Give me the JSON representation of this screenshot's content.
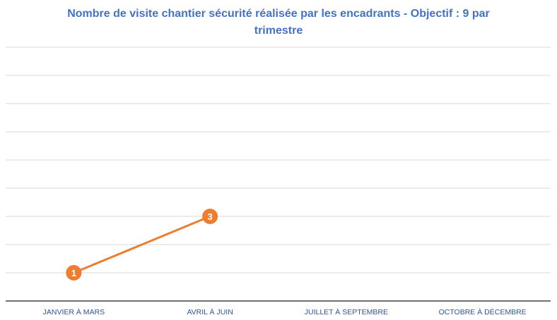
{
  "chart_data": {
    "type": "line",
    "title": "Nombre de visite chantier sécurité réalisée par les encadrants - Objectif : 9 par trimestre",
    "categories": [
      "JANVIER À MARS",
      "AVRIL À JUIN",
      "JUILLET À SEPTEMBRE",
      "OCTOBRE À DÉCEMBRE"
    ],
    "series": [
      {
        "values": [
          1,
          3,
          null,
          null
        ],
        "color": "#ED7D31"
      }
    ],
    "ylim": [
      0,
      9
    ],
    "grid": true,
    "axis_color": "#404040",
    "grid_color": "#d9d9d9"
  }
}
